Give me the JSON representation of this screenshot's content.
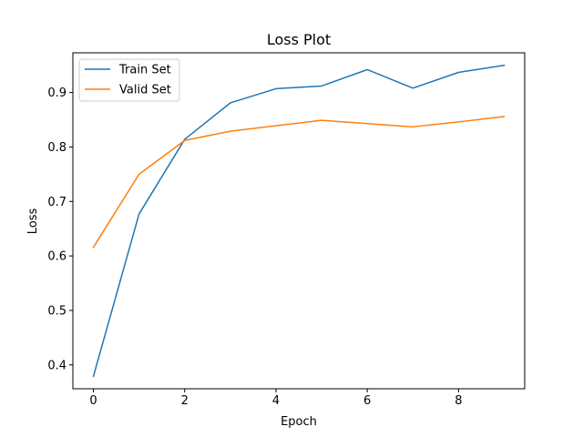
{
  "chart_data": {
    "type": "line",
    "title": "Loss Plot",
    "xlabel": "Epoch",
    "ylabel": "Loss",
    "x": [
      0,
      1,
      2,
      3,
      4,
      5,
      6,
      7,
      8,
      9
    ],
    "series": [
      {
        "name": "Train Set",
        "color": "#1f77b4",
        "values": [
          0.379,
          0.677,
          0.814,
          0.881,
          0.907,
          0.912,
          0.942,
          0.908,
          0.937,
          0.95
        ]
      },
      {
        "name": "Valid Set",
        "color": "#ff7f0e",
        "values": [
          0.616,
          0.75,
          0.812,
          0.829,
          0.839,
          0.849,
          0.843,
          0.837,
          0.846,
          0.856
        ]
      }
    ],
    "xlim": [
      -0.45,
      9.45
    ],
    "ylim": [
      0.3562,
      0.9729
    ],
    "xticks": [
      0,
      2,
      4,
      6,
      8
    ],
    "xtick_labels": [
      "0",
      "2",
      "4",
      "6",
      "8"
    ],
    "yticks": [
      0.4,
      0.5,
      0.6,
      0.7,
      0.8,
      0.9
    ],
    "ytick_labels": [
      "0.4",
      "0.5",
      "0.6",
      "0.7",
      "0.8",
      "0.9"
    ],
    "grid": false,
    "legend_position": "top-left"
  }
}
